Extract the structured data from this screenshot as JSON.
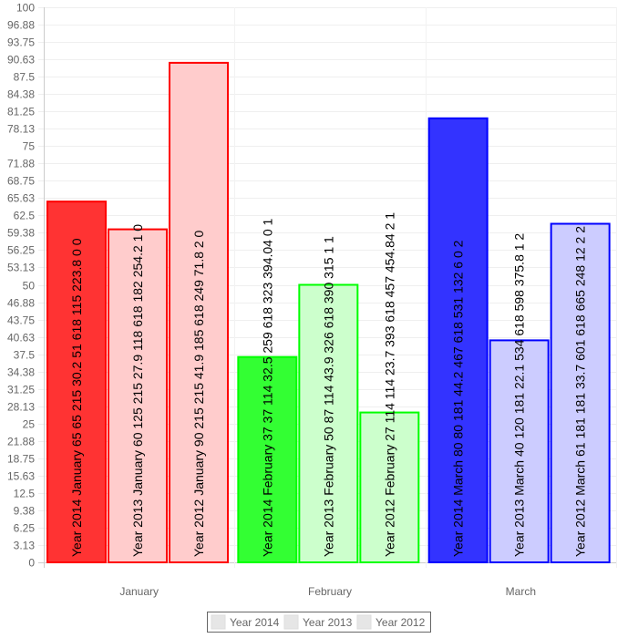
{
  "chart_data": {
    "type": "bar",
    "categories": [
      "January",
      "February",
      "March"
    ],
    "ylim": [
      0,
      100
    ],
    "y_ticks": [
      "0",
      "3.13",
      "6.25",
      "9.38",
      "12.5",
      "15.63",
      "18.75",
      "21.88",
      "25",
      "28.13",
      "31.25",
      "34.38",
      "37.5",
      "40.63",
      "43.75",
      "46.88",
      "50",
      "53.13",
      "56.25",
      "59.38",
      "62.5",
      "65.63",
      "68.75",
      "71.88",
      "75",
      "78.13",
      "81.25",
      "84.38",
      "87.5",
      "90.63",
      "93.75",
      "96.88",
      "100"
    ],
    "grid": true,
    "legend_position": "bottom",
    "legend": [
      "Year 2014",
      "Year 2013",
      "Year 2012"
    ],
    "series": [
      {
        "name": "Year 2014",
        "values": [
          65,
          37,
          80
        ]
      },
      {
        "name": "Year 2013",
        "values": [
          60,
          50,
          40
        ]
      },
      {
        "name": "Year 2012",
        "values": [
          90,
          27,
          61
        ]
      }
    ],
    "category_colors": [
      {
        "border": "#ff0000",
        "fills": [
          "#ff3333",
          "#ffcccc",
          "#ffcccc"
        ]
      },
      {
        "border": "#00ff00",
        "fills": [
          "#33ff33",
          "#ccffcc",
          "#ccffcc"
        ]
      },
      {
        "border": "#0000ff",
        "fills": [
          "#3333ff",
          "#ccccff",
          "#ccccff"
        ]
      }
    ],
    "bar_labels": [
      [
        "Year 2014 January 65 65 215 30.2 51 618 115 223.8 0 0",
        "Year 2014 February 37 37 114 32.5 259 618 323 394.04 0 1",
        "Year 2014 March 80 80 181 44.2 467 618 531 132 6 0 2"
      ],
      [
        "Year 2013 January 60 125 215 27.9 118 618 182 254.2 1 0",
        "Year 2013 February 50 87 114 43.9 326 618 390 315 1 1",
        "Year 2013 March 40 120 181 22.1 534 618 598 375.8 1 2"
      ],
      [
        "Year 2012 January 90 215 215 41.9 185 618 249 71.8 2 0",
        "Year 2012 February 27 114 114 23.7 393 618 457 454.84 2 1",
        "Year 2012 March 61 181 181 33.7 601 618 665 248 12 2 2"
      ]
    ]
  }
}
